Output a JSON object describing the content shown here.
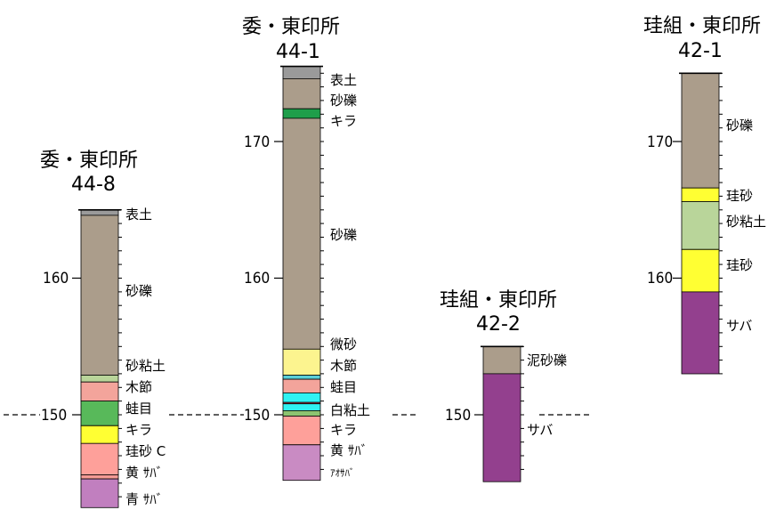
{
  "colors": {
    "top_soil": "#9a9a9a",
    "gravel": "#ab9d8b",
    "silt_sand": "#b9d59a",
    "wood": "#f3a49b",
    "frog_eye": "#58b95a",
    "kira": "#ffff33",
    "silica_sand": "#fea09a",
    "yellow_saba": "#f49a95",
    "blue_saba": "#c17fbf",
    "dark_green": "#1e9e4a",
    "fine_sand": "#fcf48f",
    "cyan": "#2ff2f2",
    "white_clay": "#8cc470",
    "aosaba": "#c98bc3",
    "mud_gravel": "#ab9d8b",
    "saba": "#93408e",
    "cyan_line": "#59cfd8",
    "red_line": "#f0475a"
  },
  "columns": [
    {
      "id": "col-44-8",
      "title_line1": "委・東印所",
      "title_line2": "44-8",
      "ticks": [
        {
          "value": 160,
          "label": "160"
        },
        {
          "value": 150,
          "label": "150"
        }
      ],
      "datum_label": "150",
      "layers": [
        {
          "name": "表土",
          "color_key": "top_soil",
          "top": 165.0,
          "bottom": 164.6
        },
        {
          "name": "砂礫",
          "color_key": "gravel",
          "top": 164.6,
          "bottom": 152.9
        },
        {
          "name": "砂粘土",
          "color_key": "silt_sand",
          "top": 152.9,
          "bottom": 152.4
        },
        {
          "name": "木節",
          "color_key": "wood",
          "top": 152.4,
          "bottom": 151.0
        },
        {
          "name": "蛙目",
          "color_key": "frog_eye",
          "top": 151.0,
          "bottom": 149.2
        },
        {
          "name": "キラ",
          "color_key": "kira",
          "top": 149.2,
          "bottom": 147.9
        },
        {
          "name": "珪砂 C",
          "color_key": "silica_sand",
          "top": 147.9,
          "bottom": 145.6
        },
        {
          "name": "黄 ｻﾊﾞ",
          "color_key": "yellow_saba",
          "top": 145.6,
          "bottom": 145.3
        },
        {
          "name": "青 ｻﾊﾞ",
          "color_key": "blue_saba",
          "top": 145.3,
          "bottom": 143.2
        }
      ],
      "labels": [
        {
          "text": "表土"
        },
        {
          "text": "砂礫"
        },
        {
          "text": "砂粘土"
        },
        {
          "text": "木節"
        },
        {
          "text": "蛙目"
        },
        {
          "text": "キラ"
        },
        {
          "text": "珪砂 C"
        },
        {
          "text": "黄 ｻﾊﾞ"
        },
        {
          "text": "青 ｻﾊﾞ"
        }
      ]
    },
    {
      "id": "col-44-1",
      "title_line1": "委・東印所",
      "title_line2": "44-1",
      "ticks": [
        {
          "value": 170,
          "label": "170"
        },
        {
          "value": 160,
          "label": "160"
        },
        {
          "value": 150,
          "label": "150"
        }
      ],
      "datum_label": "150",
      "layers": [
        {
          "name": "表土",
          "color_key": "top_soil",
          "top": 175.5,
          "bottom": 174.6
        },
        {
          "name": "砂礫",
          "color_key": "gravel",
          "top": 174.6,
          "bottom": 172.4
        },
        {
          "name": "キラ",
          "color_key": "dark_green",
          "top": 172.4,
          "bottom": 171.7
        },
        {
          "name": "砂礫",
          "color_key": "gravel",
          "top": 171.7,
          "bottom": 154.8
        },
        {
          "name": "微砂",
          "color_key": "fine_sand",
          "top": 154.8,
          "bottom": 152.9
        },
        {
          "name": "木節",
          "color_key": "cyan_line",
          "top": 152.9,
          "bottom": 152.6
        },
        {
          "name": "木節",
          "color_key": "wood",
          "top": 152.6,
          "bottom": 151.6
        },
        {
          "name": "蛙目",
          "color_key": "cyan",
          "top": 151.6,
          "bottom": 150.9
        },
        {
          "name": "蛙目",
          "color_key": "red_line",
          "top": 150.9,
          "bottom": 150.8
        },
        {
          "name": "蛙目",
          "color_key": "cyan",
          "top": 150.8,
          "bottom": 150.3
        },
        {
          "name": "白粘土",
          "color_key": "white_clay",
          "top": 150.3,
          "bottom": 149.9
        },
        {
          "name": "キラ",
          "color_key": "silica_sand",
          "top": 149.9,
          "bottom": 147.8
        },
        {
          "name": "アオサバ",
          "color_key": "aosaba",
          "top": 147.8,
          "bottom": 145.2
        }
      ],
      "labels": [
        {
          "text": "表土"
        },
        {
          "text": "砂礫"
        },
        {
          "text": "キラ"
        },
        {
          "text": "砂礫"
        },
        {
          "text": "微砂"
        },
        {
          "text": "木節"
        },
        {
          "text": "蛙目"
        },
        {
          "text": "白粘土"
        },
        {
          "text": "キラ"
        },
        {
          "text": "黄 ｻﾊﾞ"
        },
        {
          "text": "ｱｵｻﾊﾞ"
        }
      ]
    },
    {
      "id": "col-42-2",
      "title_line1": "珪組・東印所",
      "title_line2": "42-2",
      "ticks": [
        {
          "value": 150,
          "label": "150"
        }
      ],
      "datum_label": "150",
      "layers": [
        {
          "name": "泥砂礫",
          "color_key": "mud_gravel",
          "top": 155.0,
          "bottom": 153.0
        },
        {
          "name": "サバ",
          "color_key": "saba",
          "top": 153.0,
          "bottom": 145.1
        }
      ],
      "labels": [
        {
          "text": "泥砂礫"
        },
        {
          "text": "サバ"
        }
      ]
    },
    {
      "id": "col-42-1",
      "title_line1": "珪組・東印所",
      "title_line2": "42-1",
      "ticks": [
        {
          "value": 170,
          "label": "170"
        },
        {
          "value": 160,
          "label": "160"
        }
      ],
      "layers": [
        {
          "name": "砂礫",
          "color_key": "gravel",
          "top": 175.0,
          "bottom": 166.6
        },
        {
          "name": "珪砂",
          "color_key": "kira",
          "top": 166.6,
          "bottom": 165.6
        },
        {
          "name": "砂粘土",
          "color_key": "silt_sand",
          "top": 165.6,
          "bottom": 162.1
        },
        {
          "name": "珪砂",
          "color_key": "kira",
          "top": 162.1,
          "bottom": 159.0
        },
        {
          "name": "サバ",
          "color_key": "saba",
          "top": 159.0,
          "bottom": 153.0
        }
      ],
      "labels": [
        {
          "text": "砂礫"
        },
        {
          "text": "珪砂"
        },
        {
          "text": "砂粘土"
        },
        {
          "text": "珪砂"
        },
        {
          "text": "サバ"
        }
      ]
    }
  ]
}
